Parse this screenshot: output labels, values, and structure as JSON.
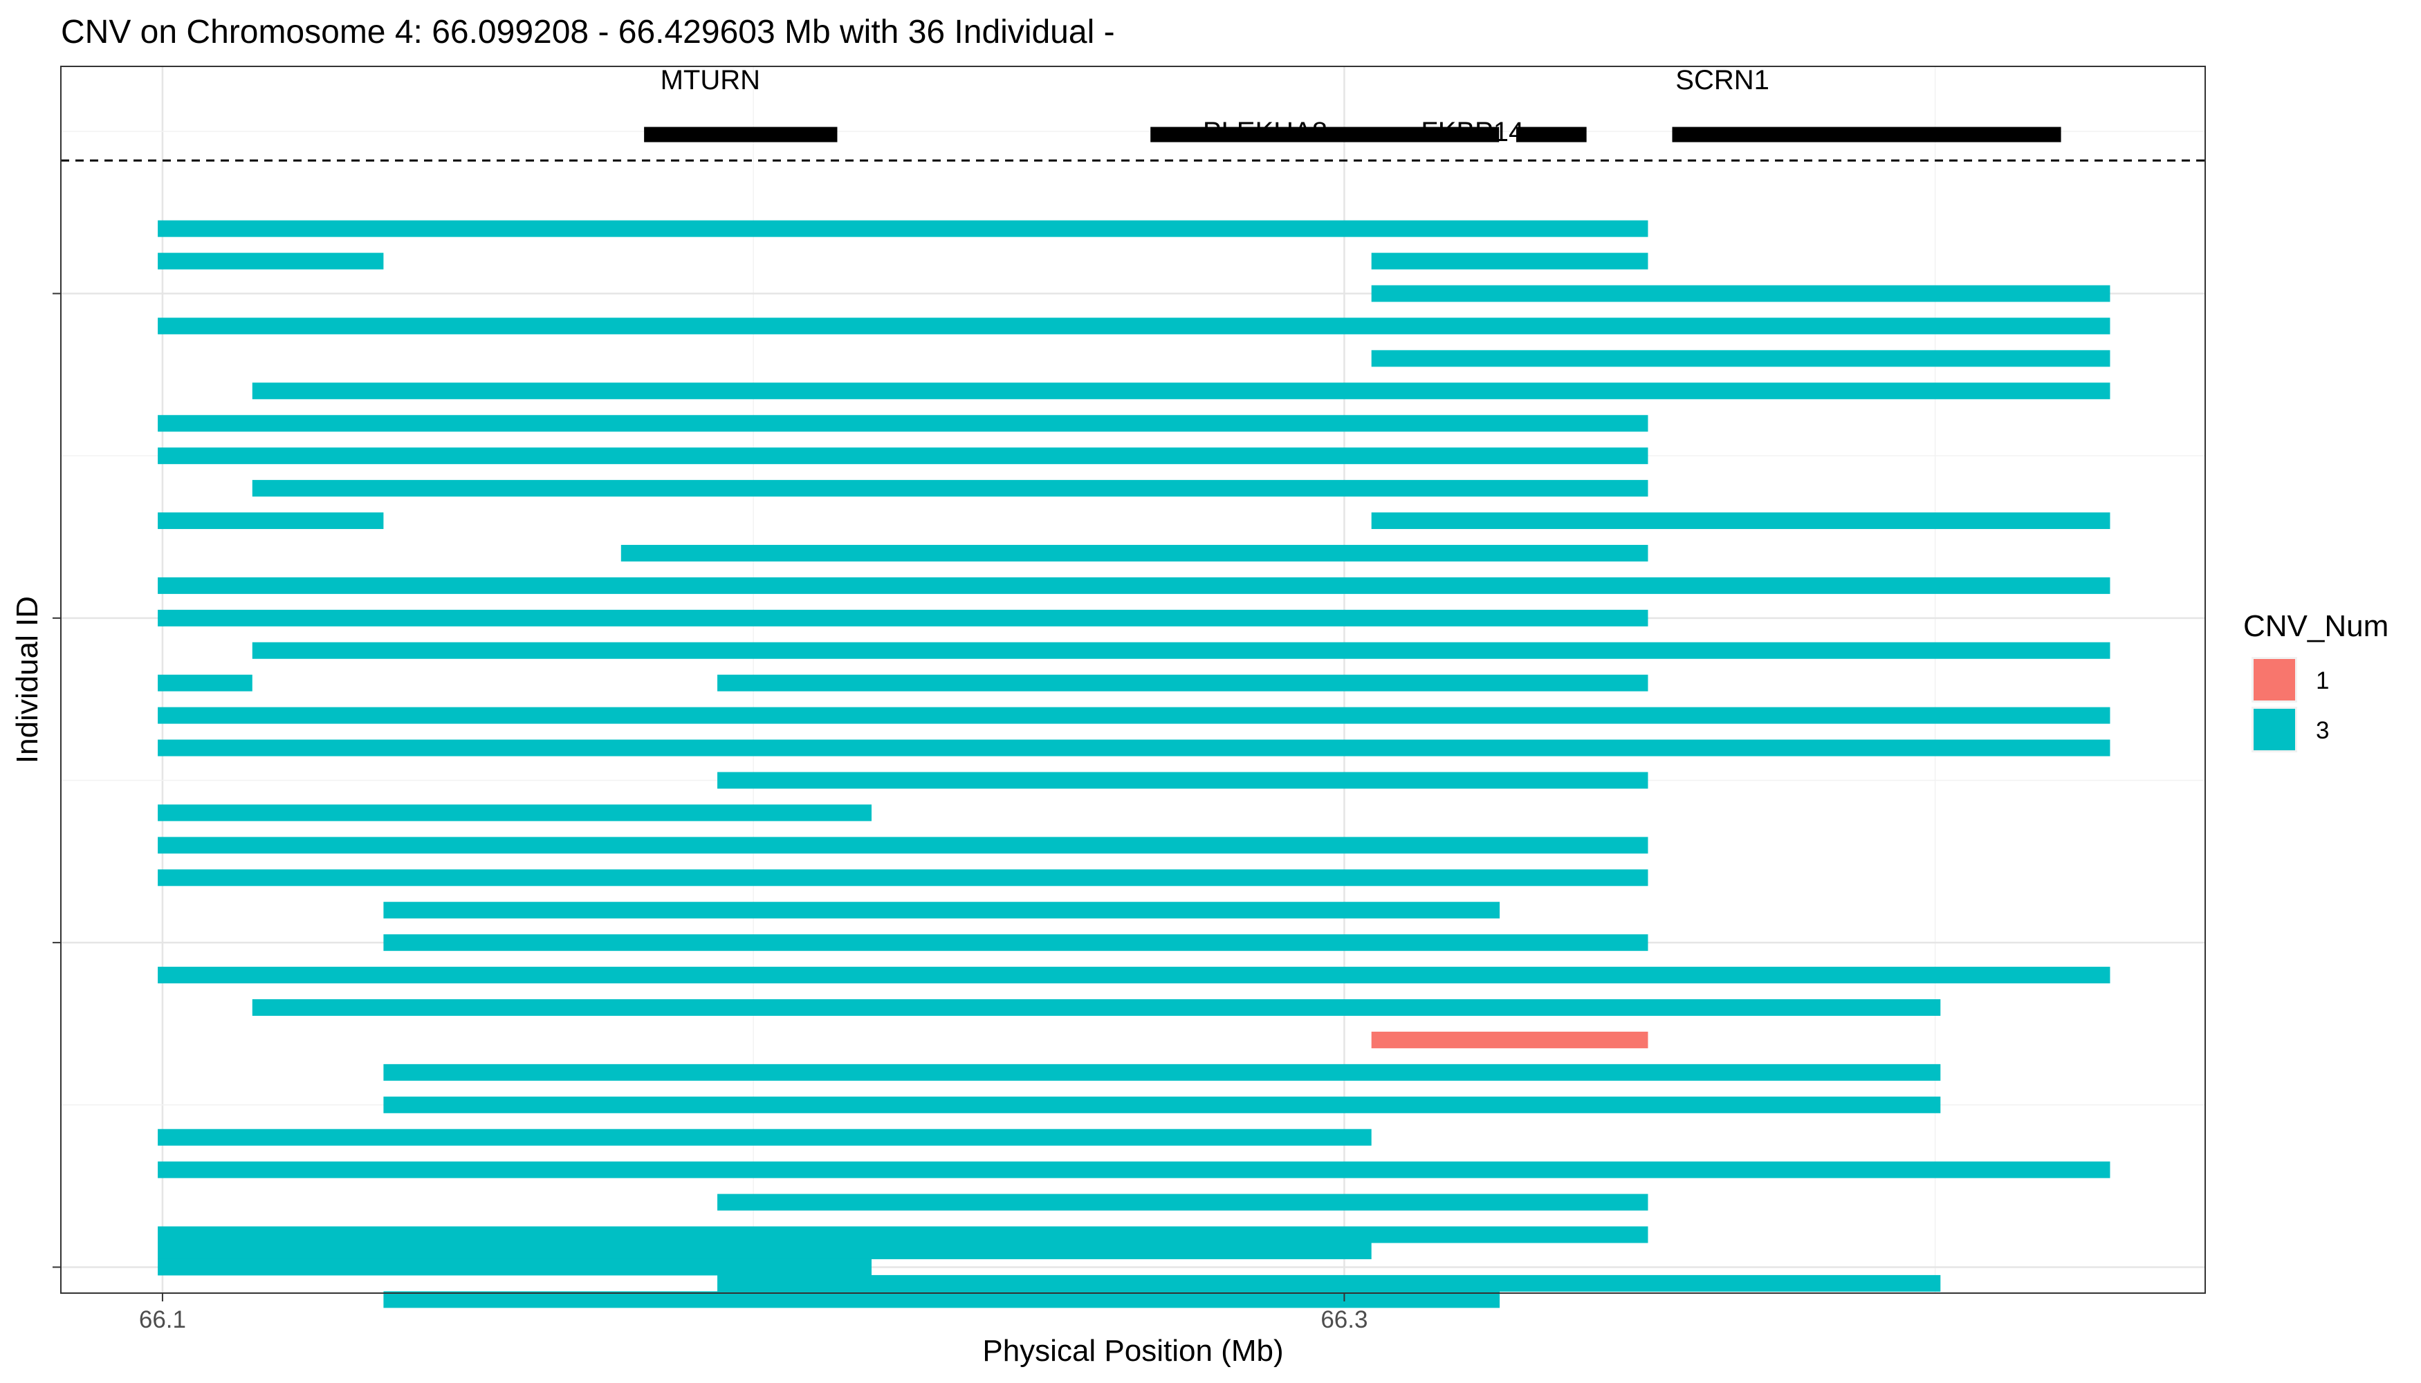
{
  "chart_data": {
    "type": "segment",
    "title": "CNV on Chromosome 4: 66.099208 - 66.429603 Mb with 36 Individual -",
    "xlabel": "Physical Position (Mb)",
    "ylabel": "Individual ID",
    "xlim": [
      66.0828,
      66.4457
    ],
    "ylim": [
      0.2,
      38.0
    ],
    "x_ticks": [
      {
        "value": 66.1,
        "label": "66.1"
      },
      {
        "value": 66.3,
        "label": "66.3"
      }
    ],
    "x_minor_grid": [
      66.2,
      66.4
    ],
    "y_ticks": [
      1,
      11,
      21,
      31,
      41
    ],
    "grid": true,
    "gene_track_y": 35.9,
    "genes": [
      {
        "name": "MTURN",
        "start": 66.1815,
        "end": 66.2142,
        "label_x": 66.1927,
        "label_y": 37.6
      },
      {
        "name": "PLEKHA8",
        "start": 66.2672,
        "end": 66.3262,
        "label_x": 66.2866,
        "label_y": 36.0
      },
      {
        "name": "FKBP14",
        "start": 66.3291,
        "end": 66.341,
        "label_x": 66.3217,
        "label_y": 36.0
      },
      {
        "name": "SCRN1",
        "start": 66.3555,
        "end": 66.4213,
        "label_x": 66.364,
        "label_y": 37.6
      }
    ],
    "gene_track_separator_y": 35.1,
    "legend": {
      "title": "CNV_Num",
      "placement": "right",
      "entries": [
        {
          "label": "1",
          "color": "#F8766D"
        },
        {
          "label": "3",
          "color": "#00BFC4"
        }
      ]
    },
    "segments": [
      {
        "y": 33,
        "start": 66.0992,
        "end": 66.3514,
        "cnv": 3
      },
      {
        "y": 32,
        "start": 66.0992,
        "end": 66.1374,
        "cnv": 3
      },
      {
        "y": 32,
        "start": 66.3046,
        "end": 66.3514,
        "cnv": 3
      },
      {
        "y": 31,
        "start": 66.3046,
        "end": 66.4296,
        "cnv": 3
      },
      {
        "y": 30,
        "start": 66.0992,
        "end": 66.4296,
        "cnv": 3
      },
      {
        "y": 29,
        "start": 66.3046,
        "end": 66.4296,
        "cnv": 3
      },
      {
        "y": 28,
        "start": 66.1152,
        "end": 66.4296,
        "cnv": 3
      },
      {
        "y": 27,
        "start": 66.0992,
        "end": 66.3514,
        "cnv": 3
      },
      {
        "y": 26,
        "start": 66.0992,
        "end": 66.3514,
        "cnv": 3
      },
      {
        "y": 25,
        "start": 66.1152,
        "end": 66.3514,
        "cnv": 3
      },
      {
        "y": 24,
        "start": 66.0992,
        "end": 66.1374,
        "cnv": 3
      },
      {
        "y": 24,
        "start": 66.3046,
        "end": 66.4296,
        "cnv": 3
      },
      {
        "y": 23,
        "start": 66.1776,
        "end": 66.3514,
        "cnv": 3
      },
      {
        "y": 22,
        "start": 66.0992,
        "end": 66.4296,
        "cnv": 3
      },
      {
        "y": 21,
        "start": 66.0992,
        "end": 66.3514,
        "cnv": 3
      },
      {
        "y": 20,
        "start": 66.1152,
        "end": 66.4296,
        "cnv": 3
      },
      {
        "y": 19,
        "start": 66.0992,
        "end": 66.1152,
        "cnv": 3
      },
      {
        "y": 19,
        "start": 66.1939,
        "end": 66.3514,
        "cnv": 3
      },
      {
        "y": 18,
        "start": 66.0992,
        "end": 66.4296,
        "cnv": 3
      },
      {
        "y": 17,
        "start": 66.0992,
        "end": 66.4296,
        "cnv": 3
      },
      {
        "y": 16,
        "start": 66.1939,
        "end": 66.3514,
        "cnv": 3
      },
      {
        "y": 15,
        "start": 66.0992,
        "end": 66.22,
        "cnv": 3
      },
      {
        "y": 14,
        "start": 66.0992,
        "end": 66.3514,
        "cnv": 3
      },
      {
        "y": 13,
        "start": 66.0992,
        "end": 66.3514,
        "cnv": 3
      },
      {
        "y": 12,
        "start": 66.1374,
        "end": 66.3263,
        "cnv": 3
      },
      {
        "y": 11,
        "start": 66.1374,
        "end": 66.3514,
        "cnv": 3
      },
      {
        "y": 10,
        "start": 66.0992,
        "end": 66.4296,
        "cnv": 3
      },
      {
        "y": 9,
        "start": 66.1152,
        "end": 66.4009,
        "cnv": 3
      },
      {
        "y": 8,
        "start": 66.3046,
        "end": 66.3514,
        "cnv": 1
      },
      {
        "y": 7,
        "start": 66.1374,
        "end": 66.4009,
        "cnv": 3
      },
      {
        "y": 6,
        "start": 66.1374,
        "end": 66.4009,
        "cnv": 3
      },
      {
        "y": 5,
        "start": 66.0992,
        "end": 66.3046,
        "cnv": 3
      },
      {
        "y": 4,
        "start": 66.0992,
        "end": 66.4296,
        "cnv": 3
      },
      {
        "y": 3,
        "start": 66.1939,
        "end": 66.3514,
        "cnv": 3
      },
      {
        "y": 2,
        "start": 66.0992,
        "end": 66.3514,
        "cnv": 3
      },
      {
        "y": 1.5,
        "start": 66.0992,
        "end": 66.3046,
        "cnv": 3
      },
      {
        "y": 1,
        "start": 66.0992,
        "end": 66.22,
        "cnv": 3
      },
      {
        "y": 0.5,
        "start": 66.1939,
        "end": 66.4009,
        "cnv": 3
      },
      {
        "y": 0,
        "start": 66.1374,
        "end": 66.3263,
        "cnv": 3
      }
    ]
  }
}
